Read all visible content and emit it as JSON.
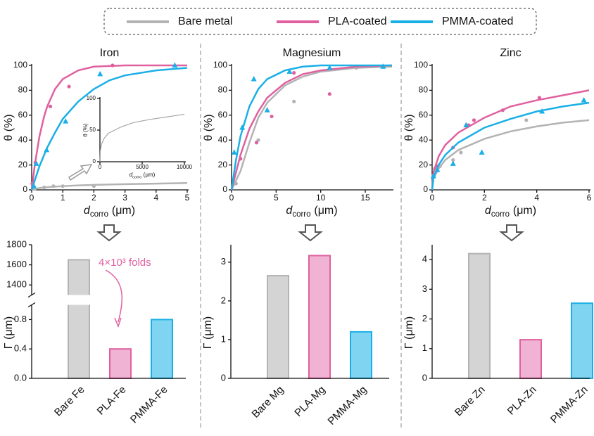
{
  "legend": {
    "items": [
      {
        "name": "Bare metal",
        "color": "#b3b3b3"
      },
      {
        "name": "PLA-coated",
        "color": "#e0609f"
      },
      {
        "name": "PMMA-coated",
        "color": "#1aafe6"
      }
    ]
  },
  "chart_data": [
    {
      "type": "scatter",
      "title": "Iron",
      "xlabel": {
        "symbol": "d",
        "subscript": "corro",
        "unit": "(μm)"
      },
      "ylabel": "θ (%)",
      "xlim": [
        0,
        5
      ],
      "ylim": [
        0,
        100
      ],
      "xticks": [
        0,
        1,
        2,
        3,
        4,
        5
      ],
      "yticks": [
        0,
        20,
        40,
        60,
        80,
        100
      ],
      "series": [
        {
          "color": "#b3b3b3",
          "marker": "circle",
          "points": {
            "x": [
              0.1,
              0.4,
              0.7,
              1,
              2
            ],
            "y": [
              1,
              2,
              3,
              3,
              3
            ]
          },
          "fit": {
            "x": [
              0,
              0.25,
              0.5,
              1,
              1.5,
              2,
              3,
              4,
              5
            ],
            "y": [
              0,
              1.5,
              2.2,
              3,
              3.6,
              4,
              4.6,
              5,
              5.5
            ]
          }
        },
        {
          "color": "#e0609f",
          "marker": "circle",
          "points": {
            "x": [
              0.02,
              0.12,
              0.6,
              1.2,
              2.6
            ],
            "y": [
              5,
              22,
              67,
              83,
              100
            ]
          },
          "fit": {
            "x": [
              0,
              0.1,
              0.25,
              0.4,
              0.5,
              0.75,
              1,
              1.5,
              2,
              3,
              4,
              5
            ],
            "y": [
              0,
              20,
              43,
              59,
              67,
              81,
              89,
              96,
              99,
              100,
              100,
              100
            ]
          }
        },
        {
          "color": "#1aafe6",
          "marker": "triangle",
          "points": {
            "x": [
              0.07,
              0.15,
              0.48,
              1.09,
              2.2,
              4.6
            ],
            "y": [
              3,
              21,
              32,
              55,
              93,
              100
            ]
          },
          "fit": {
            "x": [
              0,
              0.25,
              0.5,
              0.75,
              1,
              1.5,
              2,
              2.5,
              3,
              4,
              5
            ],
            "y": [
              0,
              19,
              34,
              46,
              57,
              71,
              81,
              88,
              92,
              96,
              98
            ]
          }
        }
      ],
      "inset": {
        "xlabel": {
          "symbol": "d",
          "subscript": "corro",
          "unit": "(μm)"
        },
        "ylabel": "θ (%)",
        "xlim": [
          0,
          10000
        ],
        "ylim": [
          0,
          100
        ],
        "xticks": [
          0,
          5000,
          10000
        ],
        "yticks": [
          0,
          50,
          100
        ],
        "series": [
          {
            "color": "#a6a6a6",
            "fit": {
              "x": [
                0,
                50,
                200,
                500,
                1000,
                2500,
                4000,
                6000,
                8000,
                10000
              ],
              "y": [
                0,
                18,
                28,
                37,
                45,
                55,
                62,
                67,
                71,
                75
              ]
            }
          }
        ]
      }
    },
    {
      "type": "scatter",
      "title": "Magnesium",
      "xlabel": {
        "symbol": "d",
        "subscript": "corro",
        "unit": "(μm)"
      },
      "ylabel": "θ (%)",
      "xlim": [
        0,
        18
      ],
      "ylim": [
        0,
        100
      ],
      "xticks": [
        0,
        5,
        10,
        15
      ],
      "yticks": [
        0,
        20,
        40,
        60,
        80,
        100
      ],
      "series": [
        {
          "color": "#b3b3b3",
          "marker": "circle",
          "points": {
            "x": [
              0.5,
              1,
              3,
              7,
              14
            ],
            "y": [
              5,
              25,
              40,
              71,
              98
            ]
          },
          "fit": {
            "x": [
              0,
              1,
              2,
              3,
              4,
              6,
              8,
              10,
              14,
              18
            ],
            "y": [
              0,
              15,
              38,
              58,
              70,
              84,
              91,
              95,
              98,
              99
            ]
          }
        },
        {
          "color": "#e0609f",
          "marker": "circle",
          "points": {
            "x": [
              1,
              2.8,
              4.5,
              7,
              11
            ],
            "y": [
              25,
              38,
              59,
              94,
              77
            ]
          },
          "fit": {
            "x": [
              0,
              1,
              2,
              3,
              4,
              6,
              8,
              10,
              14,
              18
            ],
            "y": [
              0,
              28,
              49,
              63,
              74,
              86,
              93,
              96,
              99,
              100
            ]
          }
        },
        {
          "color": "#1aafe6",
          "marker": "triangle",
          "points": {
            "x": [
              0.3,
              1.2,
              2.5,
              4,
              6.5,
              11,
              17
            ],
            "y": [
              30,
              50,
              89,
              64,
              95,
              98,
              99
            ]
          },
          "fit": {
            "x": [
              0,
              0.5,
              1,
              2,
              3,
              4,
              6,
              8,
              10,
              14,
              18
            ],
            "y": [
              0,
              24,
              43,
              67,
              81,
              89,
              96,
              99,
              100,
              100,
              100
            ]
          }
        }
      ]
    },
    {
      "type": "scatter",
      "title": "Zinc",
      "xlabel": {
        "symbol": "d",
        "subscript": "corro",
        "unit": "(μm)"
      },
      "ylabel": "θ (%)",
      "xlim": [
        0,
        6
      ],
      "ylim": [
        0,
        100
      ],
      "xticks": [
        0,
        2,
        4,
        6
      ],
      "yticks": [
        0,
        20,
        40,
        60,
        80,
        100
      ],
      "series": [
        {
          "color": "#b3b3b3",
          "marker": "circle",
          "points": {
            "x": [
              0.1,
              0.3,
              0.8,
              1.1,
              3.6
            ],
            "y": [
              17,
              19,
              24,
              30,
              56
            ]
          },
          "fit": {
            "x": [
              0,
              0.05,
              0.25,
              0.5,
              1,
              2,
              3,
              4,
              5,
              6
            ],
            "y": [
              0,
              9,
              17,
              24,
              32,
              41,
              47,
              51,
              54,
              56
            ]
          }
        },
        {
          "color": "#e0609f",
          "marker": "circle",
          "points": {
            "x": [
              0.05,
              0.2,
              0.8,
              1.4,
              1.6,
              2.7,
              4.1
            ],
            "y": [
              12,
              19,
              34,
              52,
              56,
              64,
              74
            ]
          },
          "fit": {
            "x": [
              0,
              0.05,
              0.25,
              0.5,
              1,
              2,
              3,
              4,
              5,
              6
            ],
            "y": [
              0,
              14,
              27,
              36,
              46,
              58,
              67,
              72,
              76,
              80
            ]
          }
        },
        {
          "color": "#1aafe6",
          "marker": "triangle",
          "points": {
            "x": [
              0.05,
              0.2,
              0.8,
              1.3,
              1.9,
              4.2,
              5.8
            ],
            "y": [
              11,
              16,
              21,
              52,
              30,
              63,
              72
            ]
          },
          "fit": {
            "x": [
              0,
              0.05,
              0.25,
              0.5,
              1,
              2,
              3,
              4,
              5,
              6
            ],
            "y": [
              0,
              10,
              20,
              28,
              38,
              50,
              57,
              63,
              67,
              70
            ]
          }
        }
      ]
    },
    {
      "type": "bar",
      "ylabel": "Γ (μm)",
      "categories": [
        "Bare Fe",
        "PLA-Fe",
        "PMMA-Fe"
      ],
      "values": [
        1650,
        0.4,
        0.8
      ],
      "colors": [
        "#d4d4d4",
        "#f0b3d3",
        "#7fd4f2"
      ],
      "edgecolors": [
        "#b3b3b3",
        "#e0609f",
        "#1aafe6"
      ],
      "y_segments": [
        {
          "ylim": [
            0,
            1
          ],
          "yticks": [
            {
              "value": 0,
              "label": "0.0"
            },
            0.4,
            0.8
          ]
        },
        {
          "ylim": [
            1300,
            1800
          ],
          "yticks": [
            1400,
            1600,
            1800
          ]
        }
      ],
      "annotation": {
        "text": "4×10³ folds",
        "color": "#e0609f"
      }
    },
    {
      "type": "bar",
      "ylabel": "Γ (μm)",
      "categories": [
        "Bare Mg",
        "PLA-Mg",
        "PMMA-Mg"
      ],
      "values": [
        2.65,
        3.17,
        1.2
      ],
      "colors": [
        "#d4d4d4",
        "#f0b3d3",
        "#7fd4f2"
      ],
      "edgecolors": [
        "#b3b3b3",
        "#e0609f",
        "#1aafe6"
      ],
      "y_segments": [
        {
          "ylim": [
            0,
            3.45
          ],
          "yticks": [
            0,
            1,
            2,
            3
          ]
        }
      ]
    },
    {
      "type": "bar",
      "ylabel": "Γ (μm)",
      "categories": [
        "Bare Zn",
        "PLA-Zn",
        "PMMA-Zn"
      ],
      "values": [
        4.2,
        1.3,
        2.53
      ],
      "colors": [
        "#d4d4d4",
        "#f0b3d3",
        "#7fd4f2"
      ],
      "edgecolors": [
        "#b3b3b3",
        "#e0609f",
        "#1aafe6"
      ],
      "y_segments": [
        {
          "ylim": [
            0,
            4.5
          ],
          "yticks": [
            0,
            1,
            2,
            3,
            4
          ]
        }
      ]
    }
  ]
}
